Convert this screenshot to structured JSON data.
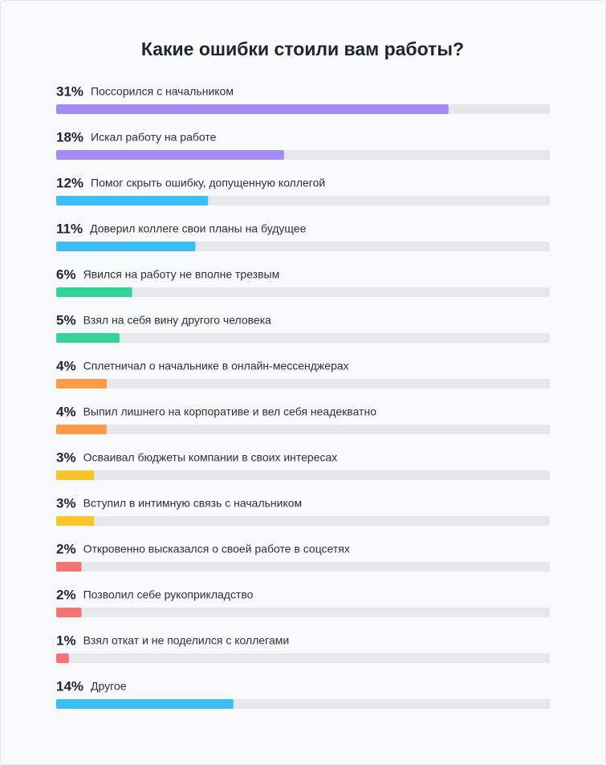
{
  "chart_data": {
    "type": "bar",
    "orientation": "horizontal",
    "title": "Какие ошибки стоили вам работы?",
    "categories": [
      "Поссорился с начальником",
      "Искал работу на работе",
      "Помог скрыть ошибку, допущенную коллегой",
      "Доверил коллеге свои планы на будущее",
      "Явился на работу не вполне трезвым",
      "Взял на себя вину другого человека",
      "Сплетничал о начальнике в онлайн-мессенджерах",
      "Выпил лишнего на корпоративе и вел себя неадекватно",
      "Осваивал бюджеты компании в своих интересах",
      "Вступил в интимную связь с начальником",
      "Откровенно высказался о своей работе в соцсетях",
      "Позволил себе рукоприкладство",
      "Взял откат и не поделился с коллегами",
      "Другое"
    ],
    "values": [
      31,
      18,
      12,
      11,
      6,
      5,
      4,
      4,
      3,
      3,
      2,
      2,
      1,
      14
    ],
    "value_labels": [
      "31%",
      "18%",
      "12%",
      "11%",
      "6%",
      "5%",
      "4%",
      "4%",
      "3%",
      "3%",
      "2%",
      "2%",
      "1%",
      "14%"
    ],
    "colors": [
      "#a48af5",
      "#a48af5",
      "#3bbdf5",
      "#3bbdf5",
      "#34d39a",
      "#34d39a",
      "#ff9a45",
      "#ff9a45",
      "#fcc42b",
      "#fcc42b",
      "#f77272",
      "#f77272",
      "#f77272",
      "#3bbdf5"
    ],
    "track_color": "#e6e7eb",
    "xlim": [
      0,
      39
    ]
  }
}
